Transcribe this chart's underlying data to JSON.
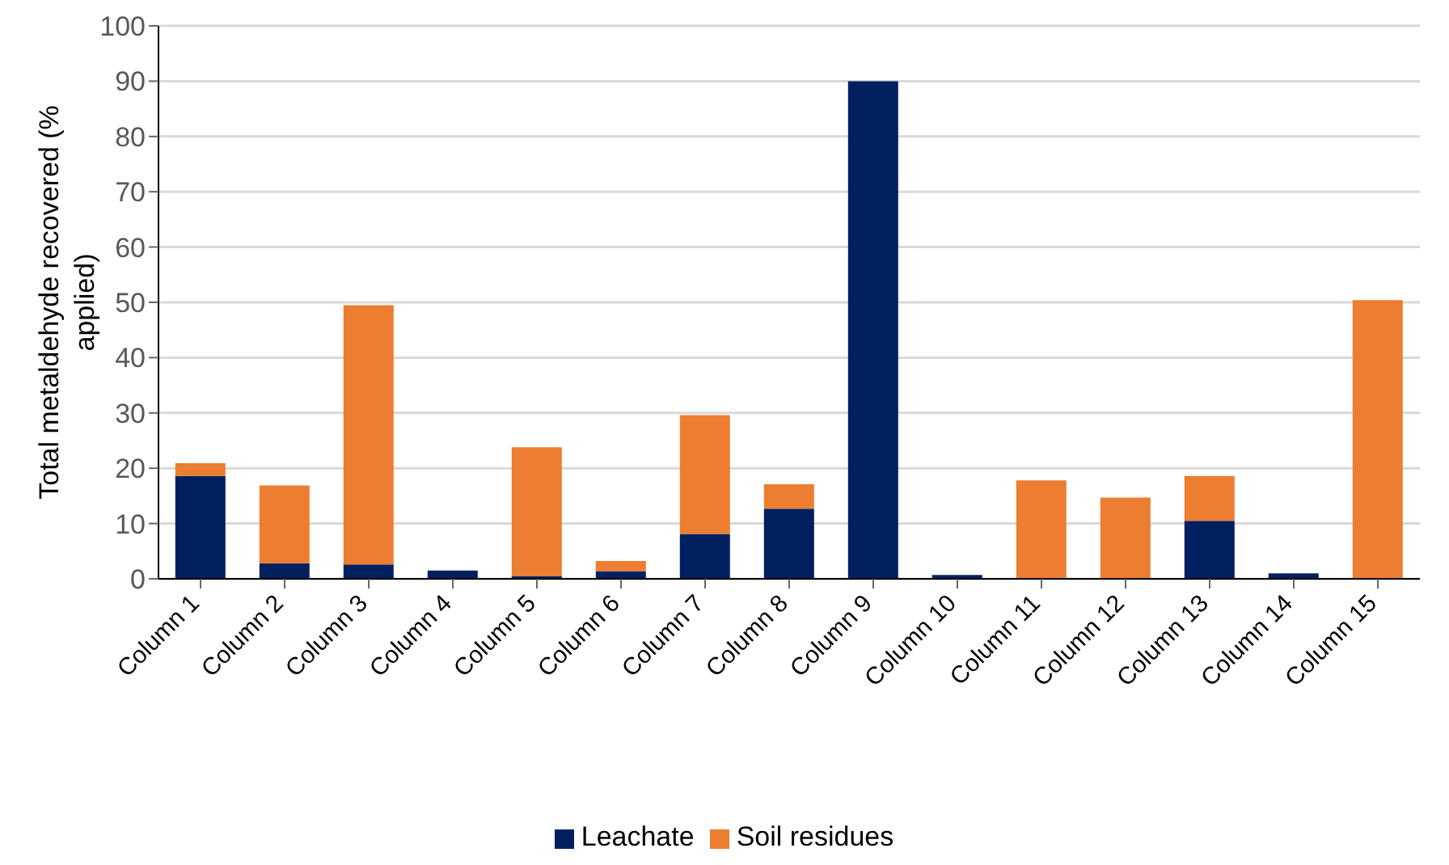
{
  "chart_data": {
    "type": "bar",
    "stacked": true,
    "ylabel": "Total metaldehyde recovered (% applied)",
    "categories": [
      "Column 1",
      "Column 2",
      "Column 3",
      "Column 4",
      "Column 5",
      "Column 6",
      "Column 7",
      "Column 8",
      "Column 9",
      "Column 10",
      "Column 11",
      "Column 12",
      "Column 13",
      "Column 14",
      "Column 15"
    ],
    "series": [
      {
        "name": "Leachate",
        "color": "#002060",
        "values": [
          18.6,
          2.8,
          2.6,
          1.5,
          0.5,
          1.4,
          8.1,
          12.7,
          90,
          0.7,
          0,
          0,
          10.5,
          1,
          0
        ]
      },
      {
        "name": "Soil residues",
        "color": "#ed7d31",
        "values": [
          2.3,
          14.1,
          46.9,
          0,
          23.3,
          1.8,
          21.5,
          4.4,
          0,
          0,
          17.8,
          14.7,
          8.1,
          0,
          50.4
        ]
      }
    ],
    "ylim": [
      0,
      100
    ],
    "yticks": [
      0,
      10,
      20,
      30,
      40,
      50,
      60,
      70,
      80,
      90,
      100
    ],
    "grid": "y",
    "legend": "bottom"
  }
}
